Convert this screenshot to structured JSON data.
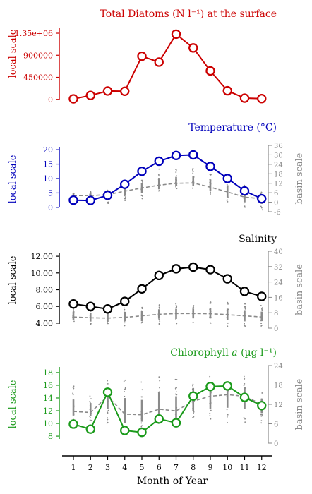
{
  "colors": {
    "red": "#cc0000",
    "blue": "#0000bb",
    "black": "#000000",
    "green": "#1a9a1a",
    "gray": "#8a8a8a"
  },
  "x_axis_label": "Month of Year",
  "chart_data": [
    {
      "type": "line",
      "title": "Total Diatoms (N l⁻¹) at the surface",
      "ylabel_left": "local scale",
      "x": [
        1,
        2,
        3,
        4,
        5,
        6,
        7,
        8,
        9,
        10,
        11,
        12
      ],
      "left_ticks": [
        "0",
        "450000",
        "900000",
        "1.35e+06"
      ],
      "left_tick_values": [
        0,
        450000,
        900000,
        1350000
      ],
      "ylim": [
        -90000,
        1480000
      ],
      "series": [
        {
          "values": [
            10000,
            80000,
            170000,
            165000,
            880000,
            760000,
            1330000,
            1050000,
            580000,
            175000,
            25000,
            15000
          ]
        }
      ],
      "grid": false
    },
    {
      "type": "line",
      "title": "Temperature (°C)",
      "ylabel_left": "local scale",
      "ylabel_right": "basin scale",
      "x": [
        1,
        2,
        3,
        4,
        5,
        6,
        7,
        8,
        9,
        10,
        11,
        12
      ],
      "left_ticks": [
        "0",
        "5",
        "10",
        "15",
        "20"
      ],
      "left_tick_values": [
        0,
        5,
        10,
        15,
        20
      ],
      "ylim": [
        -1.5,
        21.5
      ],
      "right_ticks": [
        "-6",
        "0",
        "6",
        "12",
        "18",
        "24",
        "30",
        "36"
      ],
      "right_tick_values": [
        -6,
        0,
        6,
        12,
        18,
        24,
        30,
        36
      ],
      "right_ylim": [
        -6,
        36
      ],
      "series": [
        {
          "values": [
            2.5,
            2.4,
            4.2,
            8.0,
            12.5,
            16.0,
            18.0,
            18.2,
            14.2,
            10.0,
            5.7,
            3.0
          ]
        }
      ],
      "basin_mean": [
        4.2,
        4.2,
        4.8,
        7.0,
        9.0,
        10.8,
        12.0,
        12.2,
        9.5,
        6.5,
        3.2,
        2.2
      ],
      "basin_spread": [
        [
          -1,
          8
        ],
        [
          -1,
          7.5
        ],
        [
          -1,
          9
        ],
        [
          1,
          12
        ],
        [
          2,
          16
        ],
        [
          5,
          21
        ],
        [
          8,
          21
        ],
        [
          8,
          22
        ],
        [
          4,
          20
        ],
        [
          -1,
          16
        ],
        [
          -4,
          11
        ],
        [
          -5,
          8
        ]
      ]
    },
    {
      "type": "line",
      "title": "Salinity",
      "ylabel_left": "local scale",
      "ylabel_right": "basin scale",
      "x": [
        1,
        2,
        3,
        4,
        5,
        6,
        7,
        8,
        9,
        10,
        11,
        12
      ],
      "left_ticks": [
        "4.00",
        "6.00",
        "8.00",
        "10.00",
        "12.00"
      ],
      "left_tick_values": [
        4,
        6,
        8,
        10,
        12
      ],
      "ylim": [
        3.4,
        12.6
      ],
      "right_ticks": [
        "0",
        "8",
        "16",
        "24",
        "32",
        "40"
      ],
      "right_tick_values": [
        0,
        8,
        16,
        24,
        32,
        40
      ],
      "right_ylim": [
        0,
        40
      ],
      "series": [
        {
          "values": [
            6.3,
            6.0,
            5.7,
            6.6,
            8.1,
            9.7,
            10.5,
            10.7,
            10.4,
            9.3,
            7.8,
            7.2
          ]
        }
      ],
      "basin_mean": [
        5.8,
        5.4,
        5.2,
        5.6,
        6.4,
        7.2,
        7.6,
        7.6,
        7.5,
        7.0,
        6.4,
        5.8
      ],
      "basin_spread": [
        [
          2,
          12
        ],
        [
          1,
          11
        ],
        [
          1,
          12
        ],
        [
          1,
          12
        ],
        [
          1,
          12
        ],
        [
          2,
          13
        ],
        [
          2,
          13
        ],
        [
          2,
          13
        ],
        [
          2,
          14
        ],
        [
          1,
          14
        ],
        [
          1,
          13
        ],
        [
          1,
          12
        ]
      ]
    },
    {
      "type": "line",
      "title": "Chlorophyll a (µg l⁻¹)",
      "title_parts": [
        "Chlorophyll ",
        "a",
        " (µg l⁻¹)"
      ],
      "ylabel_left": "local scale",
      "ylabel_right": "basin scale",
      "x": [
        1,
        2,
        3,
        4,
        5,
        6,
        7,
        8,
        9,
        10,
        11,
        12
      ],
      "left_ticks": [
        "8",
        "10",
        "12",
        "14",
        "16",
        "18"
      ],
      "left_tick_values": [
        8,
        10,
        12,
        14,
        16,
        18
      ],
      "ylim": [
        6.9,
        19.1
      ],
      "right_ticks": [
        "0",
        "6",
        "12",
        "18",
        "24"
      ],
      "right_tick_values": [
        0,
        6,
        12,
        18,
        24
      ],
      "right_ylim": [
        0,
        24
      ],
      "series": [
        {
          "values": [
            9.9,
            9.1,
            14.9,
            8.9,
            8.6,
            10.7,
            10.1,
            14.3,
            15.8,
            15.9,
            14.1,
            12.8
          ]
        }
      ],
      "basin_mean": [
        9.8,
        9.5,
        14.5,
        9.0,
        8.8,
        10.5,
        10.0,
        13.0,
        14.5,
        15.0,
        14.5,
        12.0
      ],
      "basin_spread": [
        [
          7,
          18
        ],
        [
          7,
          16
        ],
        [
          6,
          20
        ],
        [
          3,
          20
        ],
        [
          4,
          19
        ],
        [
          5,
          22
        ],
        [
          5,
          20
        ],
        [
          6,
          22
        ],
        [
          6,
          21
        ],
        [
          6,
          21
        ],
        [
          6,
          21
        ],
        [
          6,
          16
        ]
      ]
    }
  ]
}
